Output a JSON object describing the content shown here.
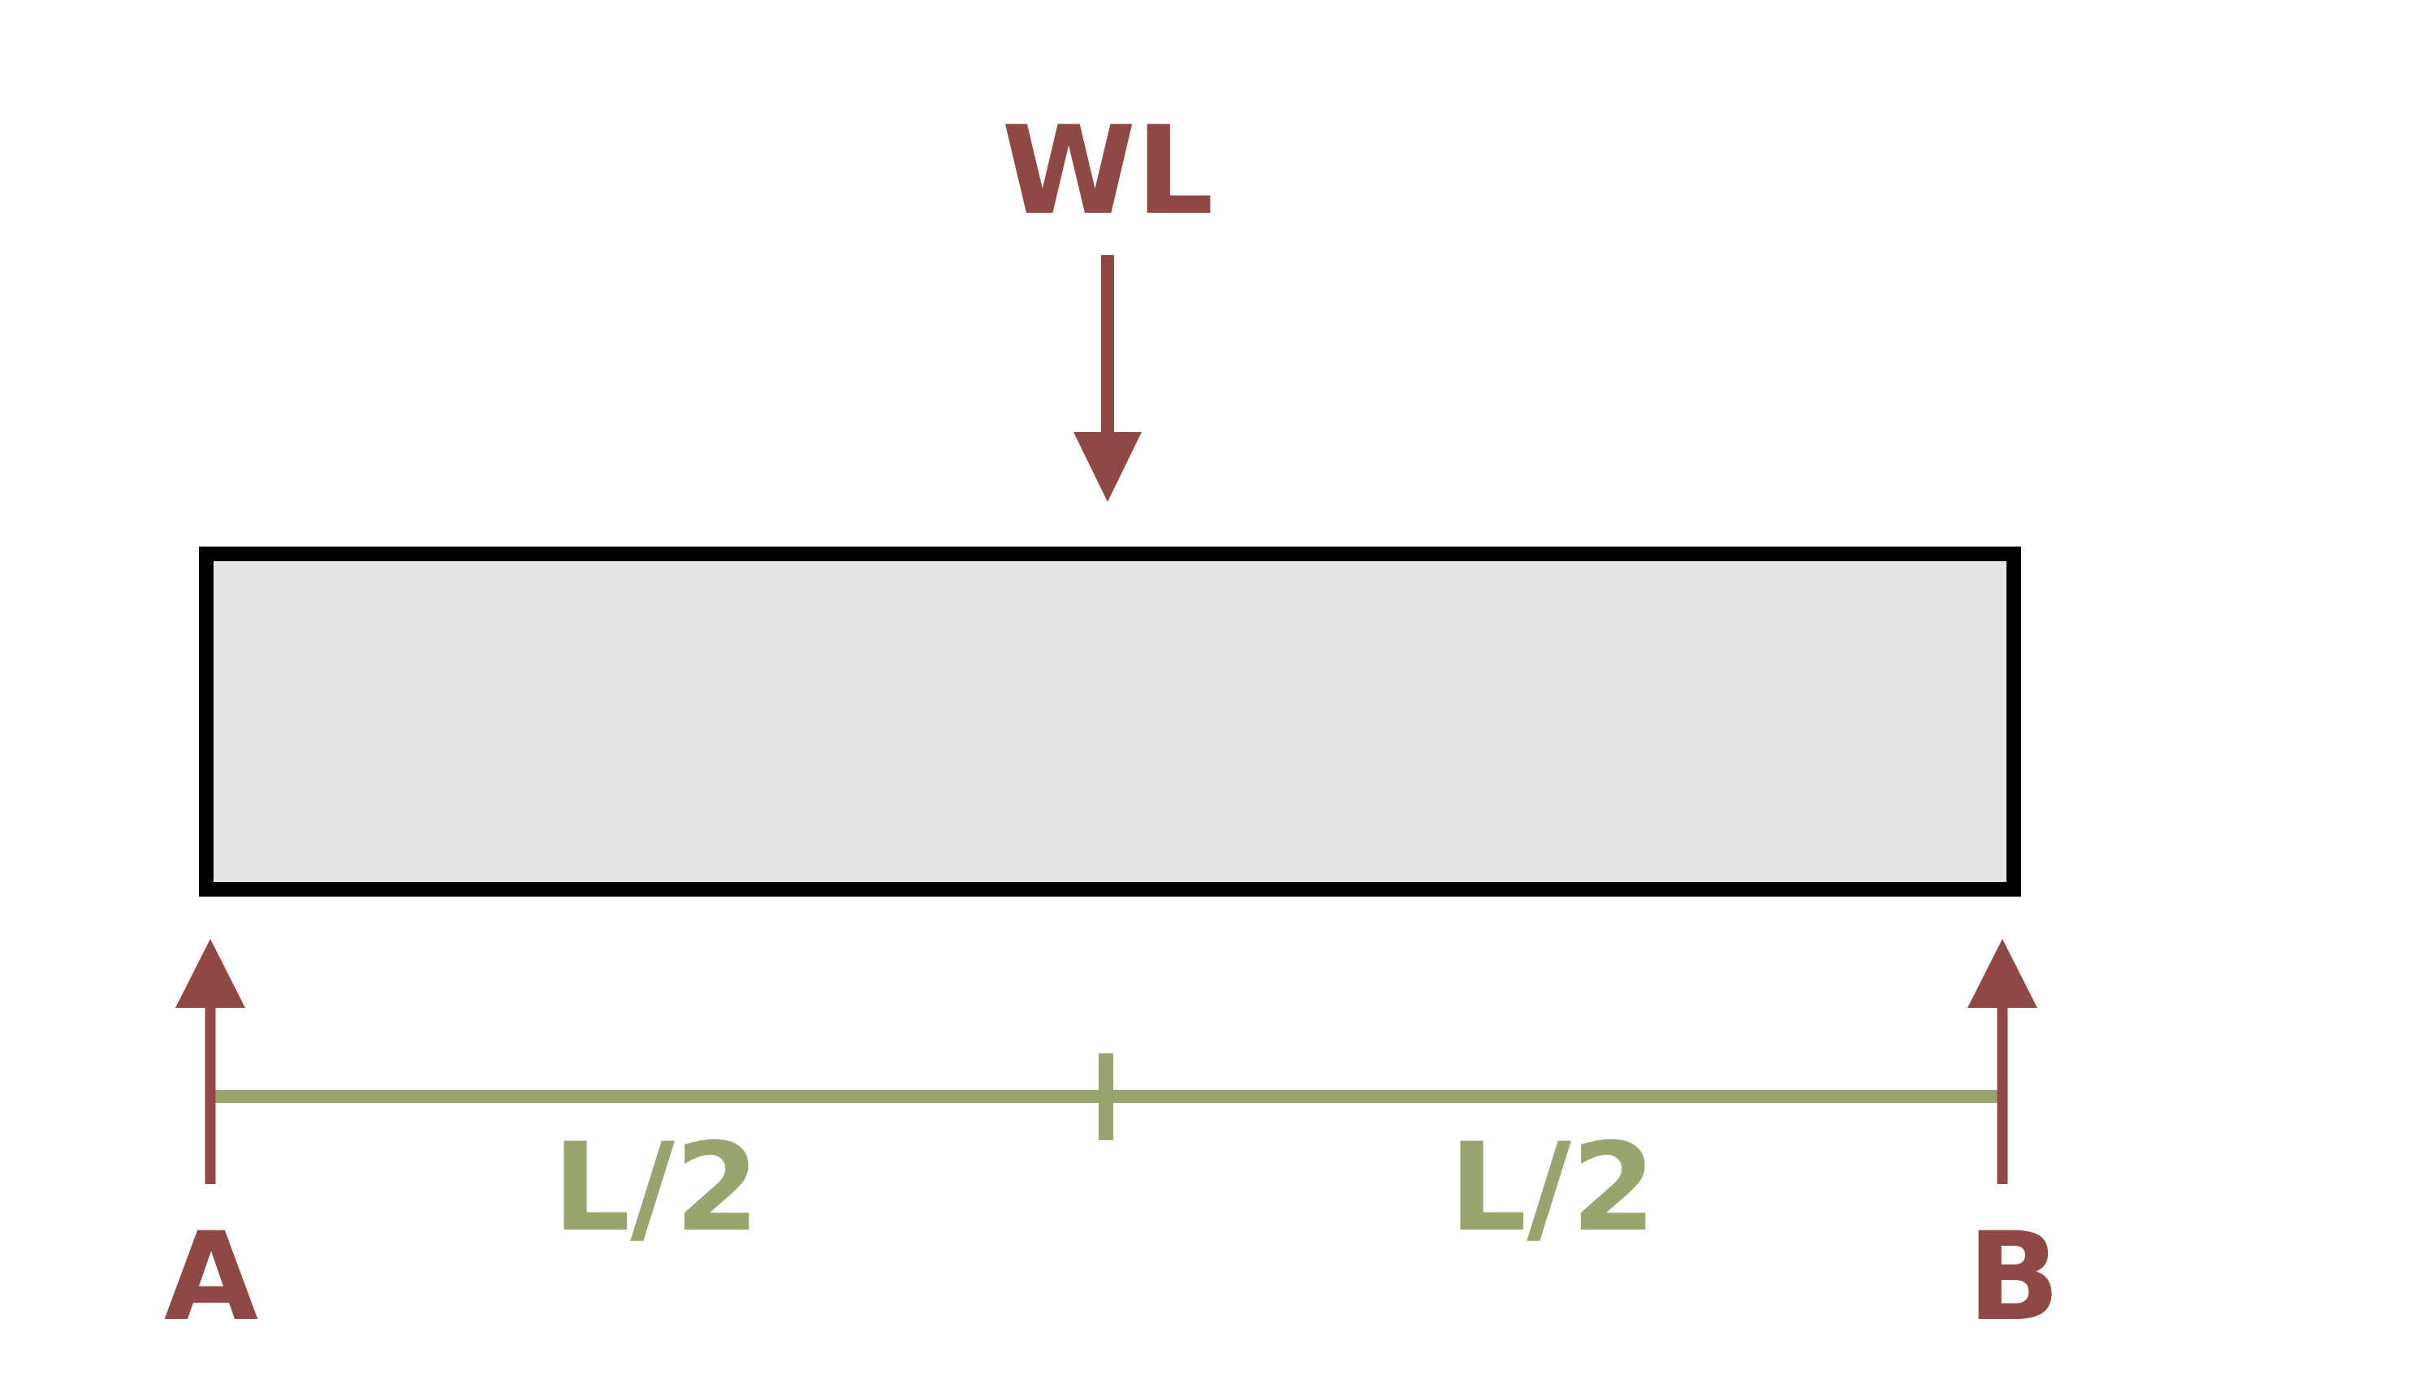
{
  "colors": {
    "background": "#ffffff",
    "beam_fill": "#e4e4e4",
    "beam_stroke": "#000000",
    "force_color": "#8f4844",
    "dimension_color": "#9aa46f"
  },
  "load": {
    "label": "WL"
  },
  "supports": {
    "left_label": "A",
    "right_label": "B"
  },
  "dimensions": {
    "left_label": "L/2",
    "right_label": "L/2"
  }
}
